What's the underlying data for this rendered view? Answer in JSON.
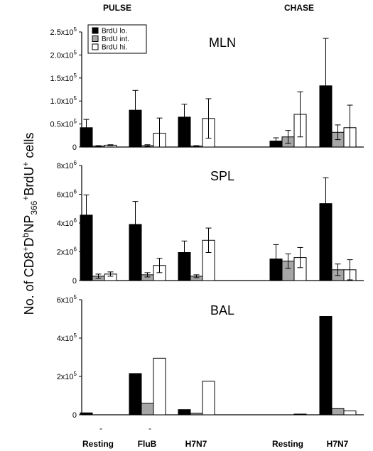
{
  "header": {
    "pulse": "PULSE",
    "chase": "CHASE"
  },
  "ylabel": {
    "parts": [
      {
        "t": "No. of CD8",
        "s": "n"
      },
      {
        "t": "+",
        "s": "sup"
      },
      {
        "t": "D",
        "s": "n"
      },
      {
        "t": "b",
        "s": "sup"
      },
      {
        "t": "NP",
        "s": "n"
      },
      {
        "t": "366",
        "s": "sub"
      },
      {
        "t": "+",
        "s": "sup"
      },
      {
        "t": "BrdU",
        "s": "n"
      },
      {
        "t": "+",
        "s": "sup"
      },
      {
        "t": " cells",
        "s": "n"
      }
    ]
  },
  "legend": [
    "BrdU lo.",
    "BrdU int.",
    "BrdU hi."
  ],
  "colors": {
    "lo": "#000000",
    "int": "#a6a6a6",
    "hi": "#ffffff",
    "axis": "#000000"
  },
  "categories": [
    "Resting",
    "FluB",
    "H7N7",
    "Resting",
    "H7N7"
  ],
  "category_marks": [
    "-",
    "-",
    "",
    "",
    ""
  ],
  "chart_data": [
    {
      "type": "bar",
      "title": "MLN",
      "categories": [
        "Resting",
        "FluB",
        "H7N7",
        "Resting",
        "H7N7"
      ],
      "series": [
        {
          "name": "BrdU lo.",
          "values": [
            42000,
            80000,
            65000,
            13000,
            133000
          ],
          "errors": [
            18000,
            43000,
            28000,
            7000,
            103000
          ]
        },
        {
          "name": "BrdU int.",
          "values": [
            2000,
            3000,
            2000,
            22000,
            32000
          ],
          "errors": [
            1000,
            2000,
            1000,
            14000,
            16000
          ]
        },
        {
          "name": "BrdU hi.",
          "values": [
            4000,
            30000,
            62000,
            71000,
            42000
          ],
          "errors": [
            1000,
            33000,
            43000,
            49000,
            49000
          ]
        }
      ],
      "ylim": [
        0,
        250000
      ],
      "yticks": [
        {
          "v": 0,
          "m": "0",
          "e": ""
        },
        {
          "v": 50000,
          "m": "0.5x10",
          "e": "5"
        },
        {
          "v": 100000,
          "m": "1.0x10",
          "e": "5"
        },
        {
          "v": 150000,
          "m": "1.5x10",
          "e": "5"
        },
        {
          "v": 200000,
          "m": "2.0x10",
          "e": "5"
        },
        {
          "v": 250000,
          "m": "2.5x10",
          "e": "5"
        }
      ]
    },
    {
      "type": "bar",
      "title": "SPL",
      "categories": [
        "Resting",
        "FluB",
        "H7N7",
        "Resting",
        "H7N7"
      ],
      "series": [
        {
          "name": "BrdU lo.",
          "values": [
            4550000,
            3900000,
            1950000,
            1500000,
            5350000
          ],
          "errors": [
            1400000,
            1600000,
            800000,
            1000000,
            1800000
          ]
        },
        {
          "name": "BrdU int.",
          "values": [
            300000,
            400000,
            300000,
            1350000,
            750000
          ],
          "errors": [
            150000,
            150000,
            100000,
            500000,
            400000
          ]
        },
        {
          "name": "BrdU hi.",
          "values": [
            450000,
            1050000,
            2800000,
            1600000,
            750000
          ],
          "errors": [
            150000,
            500000,
            850000,
            700000,
            700000
          ]
        }
      ],
      "ylim": [
        0,
        8000000
      ],
      "yticks": [
        {
          "v": 0,
          "m": "0",
          "e": ""
        },
        {
          "v": 2000000,
          "m": "2x10",
          "e": "6"
        },
        {
          "v": 4000000,
          "m": "4x10",
          "e": "6"
        },
        {
          "v": 6000000,
          "m": "6x10",
          "e": "6"
        },
        {
          "v": 8000000,
          "m": "8x10",
          "e": "6"
        }
      ]
    },
    {
      "type": "bar",
      "title": "BAL",
      "categories": [
        "Resting",
        "FluB",
        "H7N7",
        "Resting",
        "H7N7"
      ],
      "series": [
        {
          "name": "BrdU lo.",
          "values": [
            10000,
            215000,
            27000,
            0,
            513000
          ],
          "errors": []
        },
        {
          "name": "BrdU int.",
          "values": [
            0,
            60000,
            8000,
            0,
            32000
          ],
          "errors": []
        },
        {
          "name": "BrdU hi.",
          "values": [
            0,
            295000,
            175000,
            3000,
            20000
          ],
          "errors": []
        }
      ],
      "ylim": [
        0,
        600000
      ],
      "yticks": [
        {
          "v": 0,
          "m": "0",
          "e": ""
        },
        {
          "v": 200000,
          "m": "2x10",
          "e": "5"
        },
        {
          "v": 400000,
          "m": "4x10",
          "e": "5"
        },
        {
          "v": 600000,
          "m": "6x10",
          "e": "5"
        }
      ]
    }
  ]
}
